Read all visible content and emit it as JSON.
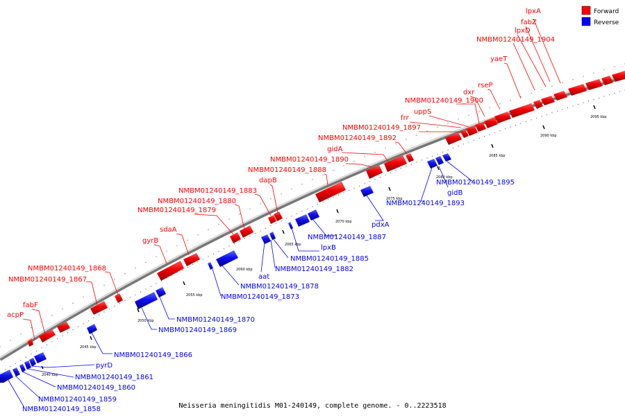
{
  "caption": "Neisseria meningitidis M01-240149, complete genome. - 0..2223518",
  "legend": {
    "forward": {
      "label": "Forward",
      "color": "#ff0000"
    },
    "reverse": {
      "label": "Reverse",
      "color": "#0000ff"
    }
  },
  "ticks": [
    "2040 kbp",
    "2045 kbp",
    "2050 kbp",
    "2055 kbp",
    "2060 kbp",
    "2065 kbp",
    "2070 kbp",
    "2075 kbp",
    "2080 kbp",
    "2085 kbp",
    "2090 kbp",
    "2095 kbp"
  ],
  "genes": {
    "forward": [
      "acpP",
      "fabF",
      "NMBM01240149_1867",
      "NMBM01240149_1868",
      "gyrB",
      "sdaA",
      "NMBM01240149_1879",
      "NMBM01240149_1880",
      "NMBM01240149_1883",
      "dapB",
      "NMBM01240149_1888",
      "NMBM01240149_1890",
      "gidA",
      "NMBM01240149_1892",
      "NMBM01240149_1897",
      "frr",
      "uppS",
      "NMBM01240149_1900",
      "dxr",
      "rseP",
      "yaeT",
      "NMBM01240149_1904",
      "lpxD",
      "fabZ",
      "lpxA"
    ],
    "reverse": [
      "NMBM01240149_1858",
      "NMBM01240149_1859",
      "NMBM01240149_1860",
      "NMBM01240149_1861",
      "pyrD",
      "NMBM01240149_1866",
      "NMBM01240149_1869",
      "NMBM01240149_1870",
      "NMBM01240149_1873",
      "NMBM01240149_1878",
      "aat",
      "NMBM01240149_1882",
      "NMBM01240149_1885",
      "lpxB",
      "NMBM01240149_1887",
      "pdxA",
      "NMBM01240149_1893",
      "gidB",
      "NMBM01240149_1895"
    ]
  }
}
